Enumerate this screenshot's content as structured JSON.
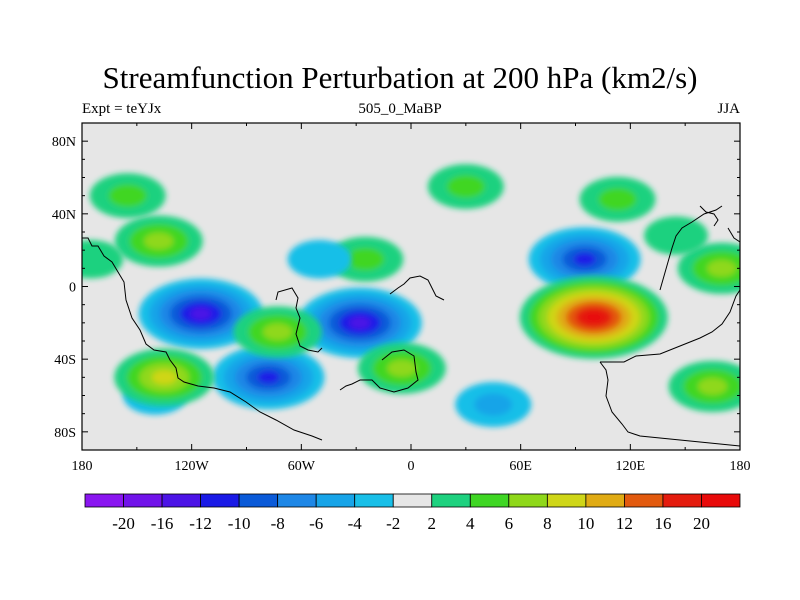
{
  "title": "Streamfunction Perturbation at 200 hPa (km2/s)",
  "subtitle_left": "Expt = teYJx",
  "subtitle_center": "505_0_MaBP",
  "subtitle_right": "JJA",
  "map": {
    "projection": "cylindrical equidistant",
    "lon_range": [
      -180,
      180
    ],
    "lat_range": [
      -90,
      90
    ],
    "lat_tick_labels": [
      "80N",
      "40N",
      "0",
      "40S",
      "80S"
    ],
    "lon_tick_labels": [
      "180",
      "120W",
      "60W",
      "0",
      "60E",
      "120E",
      "180"
    ],
    "background_color": "#e6e6e6"
  },
  "colorbar": {
    "levels": [
      "-20",
      "-16",
      "-12",
      "-10",
      "-8",
      "-6",
      "-4",
      "-2",
      "2",
      "4",
      "6",
      "8",
      "10",
      "12",
      "16",
      "20"
    ],
    "colors": [
      "#8a16f0",
      "#7113ea",
      "#4c14e6",
      "#1a1ae6",
      "#0a5ad8",
      "#1e87e6",
      "#17a4e8",
      "#19bfe8",
      "#e6e6e6",
      "#1ed17f",
      "#3fd624",
      "#8fd81a",
      "#cfd618",
      "#e0ab14",
      "#e25a0e",
      "#e41c0e",
      "#e80a0a"
    ]
  },
  "chart_data": {
    "type": "contour map",
    "variable": "Streamfunction Perturbation at 200 hPa",
    "units": "km2/s",
    "features": [
      {
        "lon": -115,
        "lat": -15,
        "value": -16
      },
      {
        "lon": -78,
        "lat": -50,
        "value": -12
      },
      {
        "lon": -28,
        "lat": -20,
        "value": -16
      },
      {
        "lon": 95,
        "lat": 15,
        "value": -12
      },
      {
        "lon": 45,
        "lat": -65,
        "value": -6
      },
      {
        "lon": -140,
        "lat": -60,
        "value": -4
      },
      {
        "lon": 100,
        "lat": -17,
        "value": 20
      },
      {
        "lon": -135,
        "lat": -50,
        "value": 8
      },
      {
        "lon": -138,
        "lat": 25,
        "value": 6
      },
      {
        "lon": 30,
        "lat": 55,
        "value": 4
      },
      {
        "lon": -5,
        "lat": -45,
        "value": 6
      },
      {
        "lon": -73,
        "lat": -25,
        "value": 6
      },
      {
        "lon": 170,
        "lat": 10,
        "value": 6
      },
      {
        "lon": 165,
        "lat": -55,
        "value": 6
      },
      {
        "lon": -155,
        "lat": 50,
        "value": 4
      },
      {
        "lon": 113,
        "lat": 48,
        "value": 4
      },
      {
        "lon": -25,
        "lat": 15,
        "value": 4
      },
      {
        "lon": -50,
        "lat": 15,
        "value": -4
      },
      {
        "lon": 145,
        "lat": 28,
        "value": 2
      },
      {
        "lon": -175,
        "lat": 15,
        "value": 2
      }
    ]
  }
}
